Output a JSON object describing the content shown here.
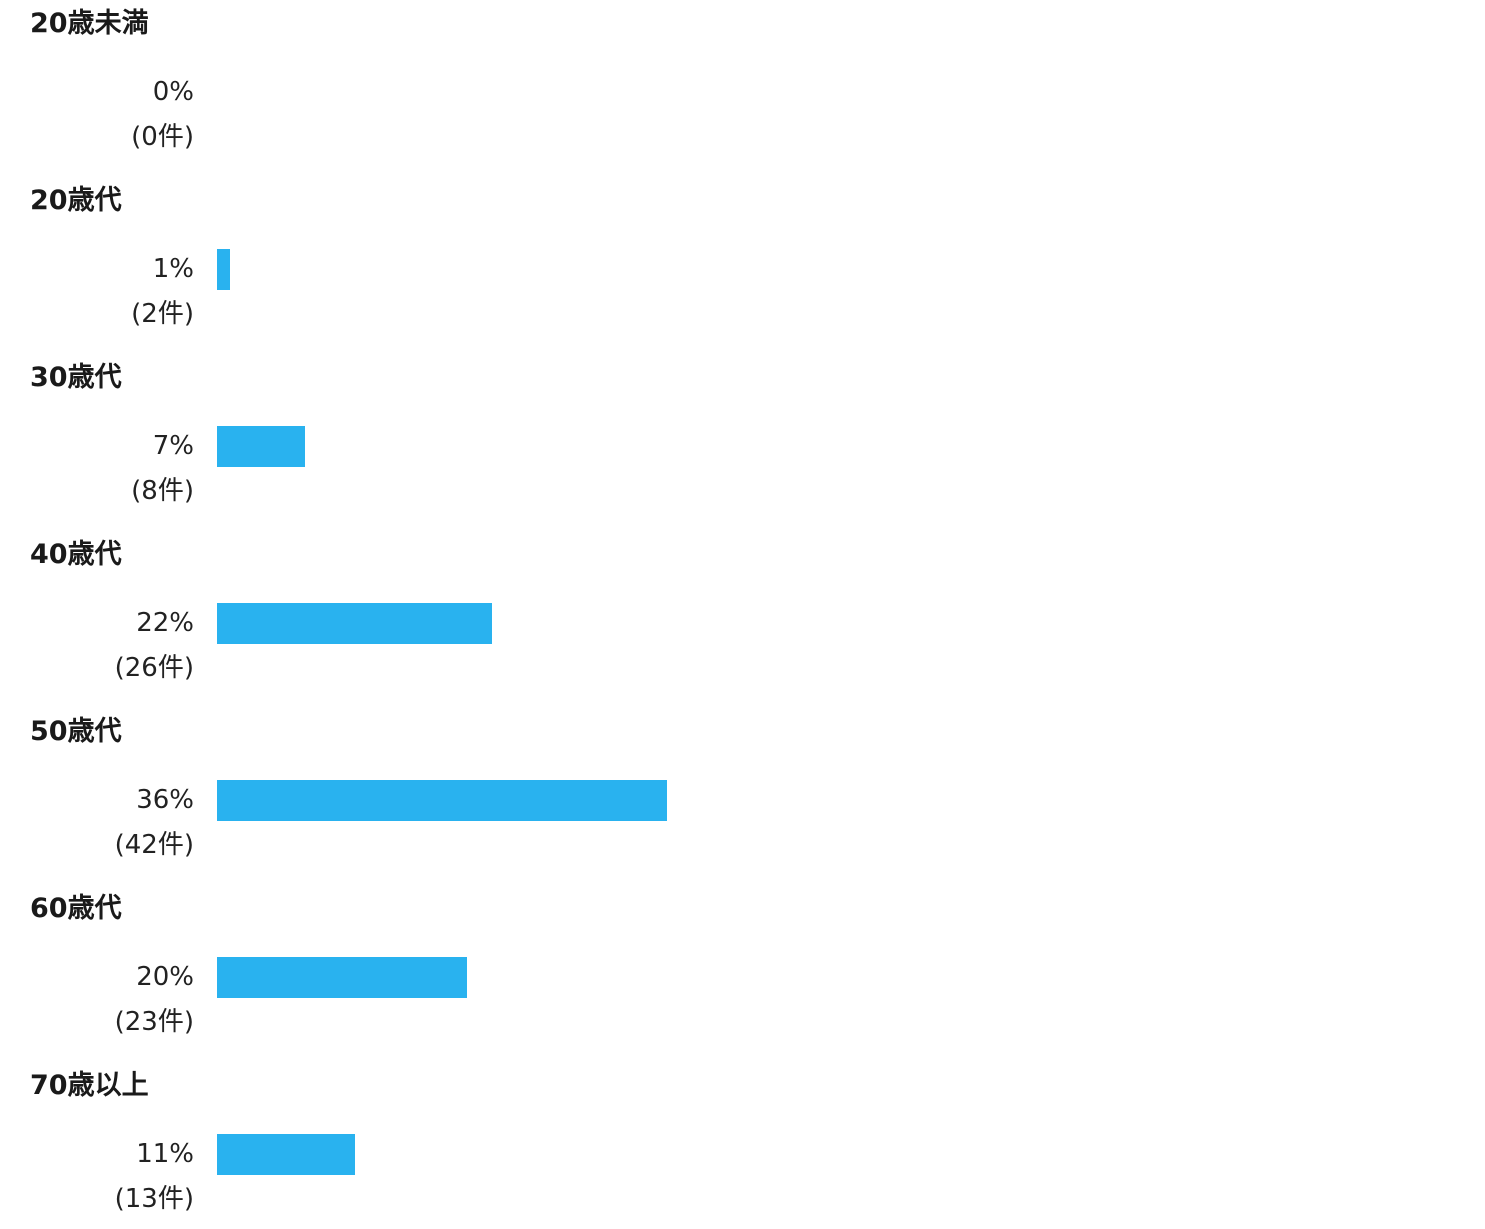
{
  "chart_data": {
    "type": "bar",
    "orientation": "horizontal",
    "bar_color": "#29b2ef",
    "count_suffix": "件",
    "rows": [
      {
        "category": "20歳未満",
        "percent": 0,
        "count": 0,
        "percent_label": "0%",
        "count_label": "(0件)"
      },
      {
        "category": "20歳代",
        "percent": 1,
        "count": 2,
        "percent_label": "1%",
        "count_label": "(2件)"
      },
      {
        "category": "30歳代",
        "percent": 7,
        "count": 8,
        "percent_label": "7%",
        "count_label": "(8件)"
      },
      {
        "category": "40歳代",
        "percent": 22,
        "count": 26,
        "percent_label": "22%",
        "count_label": "(26件)"
      },
      {
        "category": "50歳代",
        "percent": 36,
        "count": 42,
        "percent_label": "36%",
        "count_label": "(42件)"
      },
      {
        "category": "60歳代",
        "percent": 20,
        "count": 23,
        "percent_label": "20%",
        "count_label": "(23件)"
      },
      {
        "category": "70歳以上",
        "percent": 11,
        "count": 13,
        "percent_label": "11%",
        "count_label": "(13件)"
      }
    ]
  }
}
